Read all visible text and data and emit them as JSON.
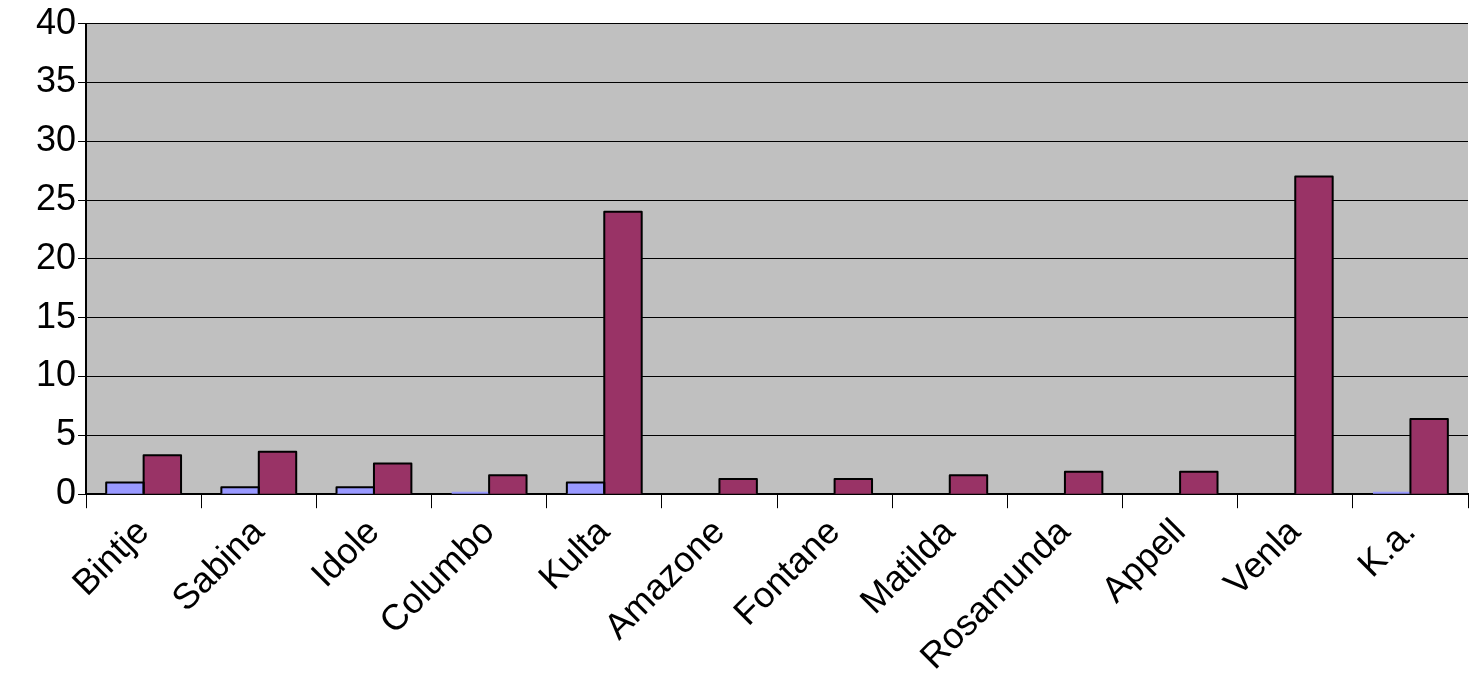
{
  "chart_data": {
    "type": "bar",
    "categories": [
      "Bintje",
      "Sabina",
      "Idole",
      "Columbo",
      "Kulta",
      "Amazone",
      "Fontane",
      "Matilda",
      "Rosamunda",
      "Appell",
      "Venla",
      "K.a."
    ],
    "series": [
      {
        "color": "#9999ff",
        "values": [
          1.0,
          0.6,
          0.6,
          0.2,
          1.0,
          0,
          0,
          0,
          0,
          0,
          0,
          0.2
        ]
      },
      {
        "color": "#993366",
        "values": [
          3.3,
          3.6,
          2.6,
          1.6,
          24,
          1.3,
          1.3,
          1.6,
          1.9,
          1.9,
          27,
          6.4
        ]
      }
    ],
    "ylim": [
      0,
      40
    ],
    "yticks": [
      0,
      5,
      10,
      15,
      20,
      25,
      30,
      35,
      40
    ],
    "grid": "y",
    "legend": false
  }
}
